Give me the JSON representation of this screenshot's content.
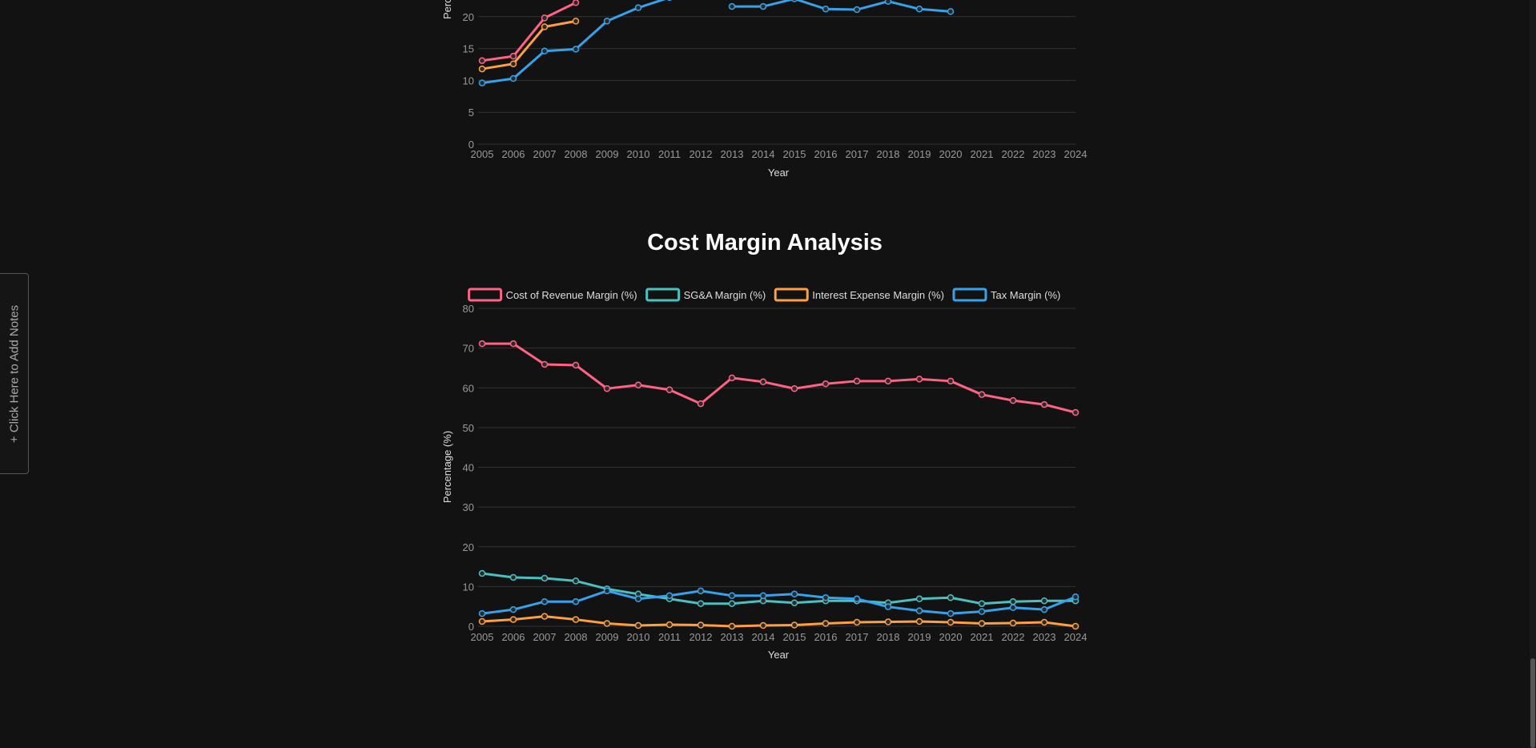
{
  "notes_tab": "+ Click Here to Add Notes",
  "chart_data": [
    {
      "type": "line",
      "y_label": "Percentage (%)",
      "x_label": "Year",
      "categories": [
        "2005",
        "2006",
        "2007",
        "2008",
        "2009",
        "2010",
        "2011",
        "2012",
        "2013",
        "2014",
        "2015",
        "2016",
        "2017",
        "2018",
        "2019",
        "2020",
        "2021",
        "2022",
        "2023",
        "2024"
      ],
      "series": [
        {
          "color": "#ff6384",
          "values": [
            13.1,
            13.8,
            19.8,
            22.2,
            null,
            null,
            null,
            null,
            null,
            null,
            null,
            null,
            null,
            null,
            null,
            null,
            null,
            null,
            null,
            null
          ]
        },
        {
          "color": "#ff9f40",
          "values": [
            11.8,
            12.6,
            18.4,
            19.3,
            null,
            null,
            null,
            null,
            null,
            null,
            null,
            null,
            null,
            null,
            null,
            null,
            null,
            null,
            null,
            null
          ]
        },
        {
          "color": "#36a2eb",
          "values": [
            9.6,
            10.3,
            14.6,
            14.9,
            19.3,
            21.4,
            23.0,
            null,
            21.6,
            21.6,
            22.8,
            21.2,
            21.1,
            22.4,
            21.2,
            20.8,
            null,
            null,
            null,
            null
          ]
        }
      ],
      "ylim": [
        0,
        25
      ],
      "yticks": [
        0,
        5,
        10,
        15,
        20
      ],
      "grid": true
    },
    {
      "type": "line",
      "title": "Cost Margin Analysis",
      "y_label": "Percentage (%)",
      "x_label": "Year",
      "categories": [
        "2005",
        "2006",
        "2007",
        "2008",
        "2009",
        "2010",
        "2011",
        "2012",
        "2013",
        "2014",
        "2015",
        "2016",
        "2017",
        "2018",
        "2019",
        "2020",
        "2021",
        "2022",
        "2023",
        "2024"
      ],
      "series": [
        {
          "name": "Cost of Revenue Margin (%)",
          "color": "#ff6384",
          "values": [
            71.1,
            71.1,
            65.9,
            65.7,
            59.8,
            60.7,
            59.5,
            56.0,
            62.5,
            61.5,
            59.8,
            61.0,
            61.7,
            61.7,
            62.2,
            61.7,
            58.3,
            56.8,
            55.8,
            53.8
          ]
        },
        {
          "name": "SG&A Margin (%)",
          "color": "#4bc0c0",
          "values": [
            13.3,
            12.3,
            12.1,
            11.4,
            9.4,
            8.1,
            6.9,
            5.7,
            5.7,
            6.4,
            5.9,
            6.4,
            6.4,
            5.9,
            6.9,
            7.2,
            5.7,
            6.2,
            6.4,
            6.4
          ]
        },
        {
          "name": "Interest Expense Margin (%)",
          "color": "#ff9f40",
          "values": [
            1.2,
            1.7,
            2.5,
            1.7,
            0.7,
            0.2,
            0.4,
            0.3,
            0.0,
            0.2,
            0.3,
            0.7,
            1.0,
            1.1,
            1.2,
            1.0,
            0.7,
            0.8,
            1.0,
            0.0
          ]
        },
        {
          "name": "Tax Margin (%)",
          "color": "#36a2eb",
          "values": [
            3.2,
            4.2,
            6.2,
            6.2,
            8.9,
            6.9,
            7.7,
            8.9,
            7.7,
            7.7,
            8.1,
            7.2,
            6.9,
            4.9,
            3.9,
            3.2,
            3.7,
            4.7,
            4.2,
            7.4
          ]
        }
      ],
      "ylim": [
        0,
        80
      ],
      "yticks": [
        0,
        10,
        20,
        30,
        40,
        50,
        60,
        70,
        80
      ],
      "grid": true
    }
  ]
}
